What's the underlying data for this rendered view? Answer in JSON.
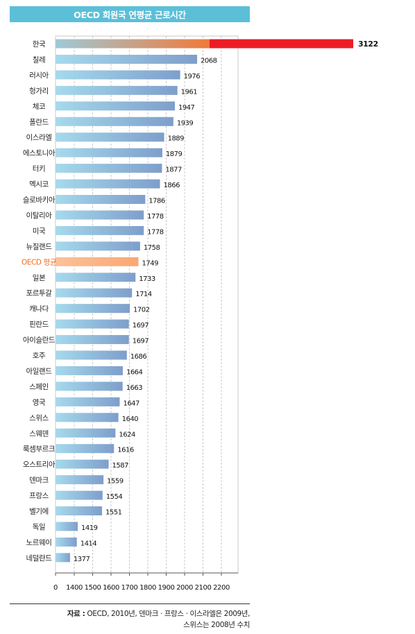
{
  "title": "OECD 회원국 연평균 근로시간",
  "colors": {
    "title_bg": "#5bbfd8",
    "bar_light": "#a6daec",
    "bar_dark": "#7e9ecb",
    "highlight_bar": "#f9a871",
    "korea_gradient_start": "#9fc9d8",
    "korea_gradient_end": "#f07a3a",
    "korea_overflow": "#ec1c24",
    "highlight_label": "#f06a1e"
  },
  "chart_data": {
    "type": "bar",
    "orientation": "horizontal",
    "categories": [
      "한국",
      "칠레",
      "러시아",
      "헝가리",
      "체코",
      "폴란드",
      "이스라엘",
      "에스토니아",
      "터키",
      "멕시코",
      "슬로바키아",
      "이탈리아",
      "미국",
      "뉴질랜드",
      "OECD 평균",
      "일본",
      "포르투갈",
      "캐나다",
      "핀란드",
      "아이슬란드",
      "호주",
      "아일랜드",
      "스페인",
      "영국",
      "스위스",
      "스웨덴",
      "룩셈부르크",
      "오스트리아",
      "덴마크",
      "프랑스",
      "벨기에",
      "독일",
      "노르웨이",
      "네덜란드"
    ],
    "values": [
      3122,
      2068,
      1976,
      1961,
      1947,
      1939,
      1889,
      1879,
      1877,
      1866,
      1786,
      1778,
      1778,
      1758,
      1749,
      1733,
      1714,
      1702,
      1697,
      1697,
      1686,
      1664,
      1663,
      1647,
      1640,
      1624,
      1616,
      1587,
      1559,
      1554,
      1551,
      1419,
      1414,
      1377
    ],
    "highlight_category": "OECD 평균",
    "axis_break": "0 → 1400",
    "xticks": [
      "0",
      "1400",
      "1500",
      "1600",
      "1700",
      "1800",
      "1900",
      "2000",
      "2100",
      "2200"
    ],
    "xlim": [
      1300,
      2200
    ],
    "grid": true
  },
  "source": {
    "label": "자료 :",
    "line1": " OECD, 2010년, 덴마크 · 프랑스 · 이스라엘은 2009년,",
    "line2": "스위스는 2008년 수치"
  }
}
